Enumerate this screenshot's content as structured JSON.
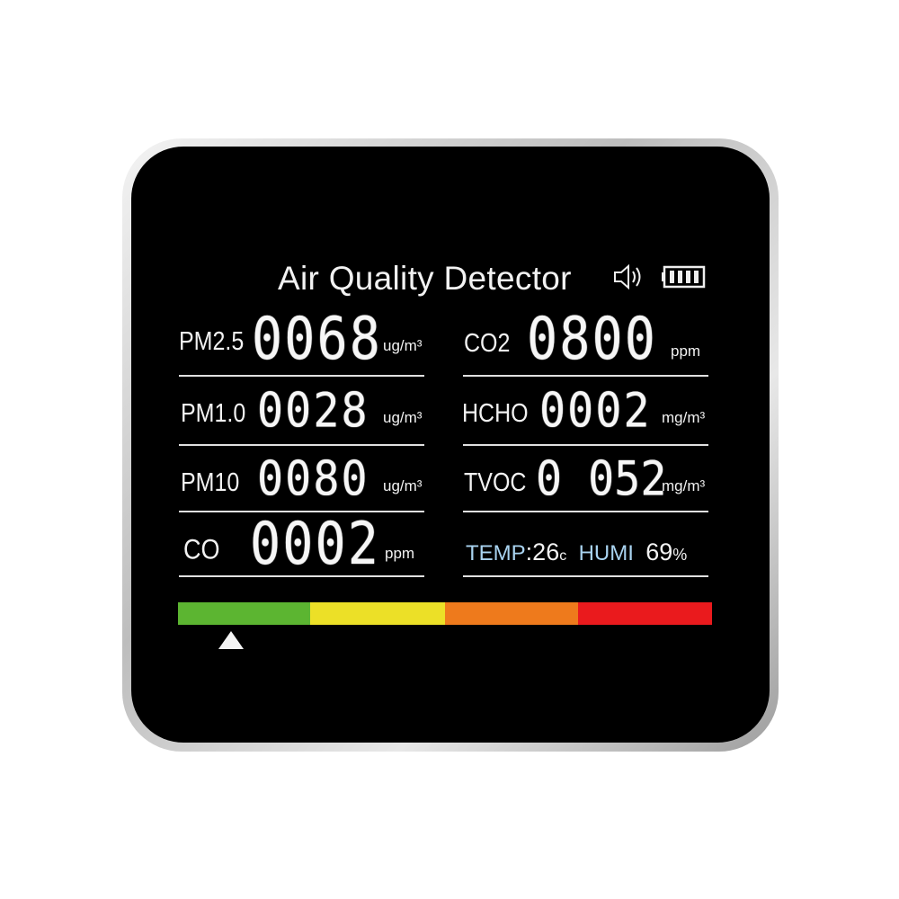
{
  "title": "Air Quality Detector",
  "icons": {
    "sound": "speaker-icon",
    "battery": "battery-full-icon"
  },
  "left": [
    {
      "label": "PM2.5",
      "value": "0068",
      "unit": "ug/m³"
    },
    {
      "label": "PM1.0",
      "value": "0028",
      "unit": "ug/m³"
    },
    {
      "label": "PM10",
      "value": "0080",
      "unit": "ug/m³"
    },
    {
      "label": "CO",
      "value": "0002",
      "unit": "ppm"
    }
  ],
  "right": [
    {
      "label": "CO2",
      "value": "0800",
      "unit": "ppm"
    },
    {
      "label": "HCHO",
      "value": "0002",
      "unit": "mg/m³"
    },
    {
      "label": "TVOC",
      "value": "0 052",
      "unit": "mg/m³"
    }
  ],
  "env": {
    "temp_label": "TEMP",
    "temp_value": ":26",
    "temp_unit": "c",
    "humi_label": "HUMI",
    "humi_value": "69",
    "humi_unit": "%"
  },
  "scale": {
    "colors": [
      "#5cb531",
      "#ece027",
      "#ee7a1c",
      "#ea1a1d"
    ],
    "indicator_level": 0.1
  },
  "colors": {
    "env_text": "#a9d3f0",
    "screen": "#000000"
  }
}
